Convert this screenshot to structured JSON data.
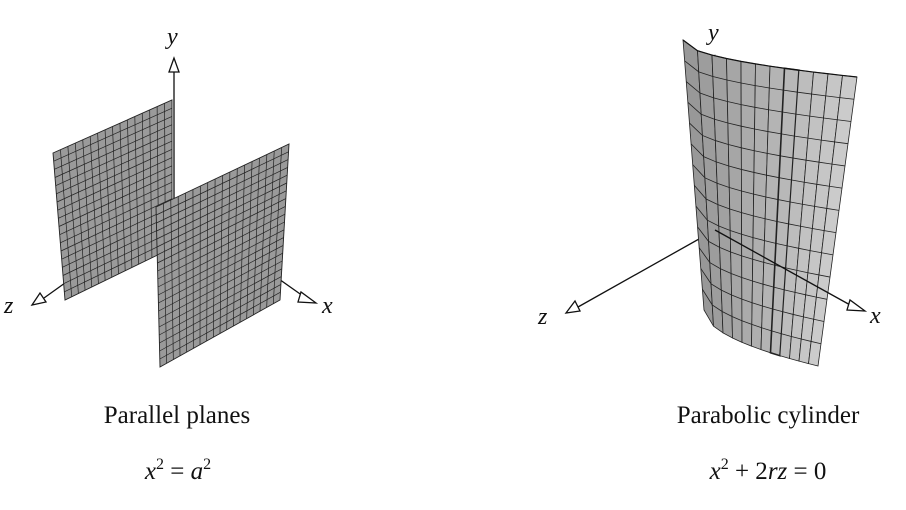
{
  "left_figure": {
    "axes": {
      "x": "x",
      "y": "y",
      "z": "z"
    },
    "caption": "Parallel planes",
    "equation": {
      "lhs_var": "x",
      "lhs_exp": "2",
      "op": "=",
      "rhs_var": "a",
      "rhs_exp": "2"
    }
  },
  "right_figure": {
    "axes": {
      "x": "x",
      "y": "y",
      "z": "z"
    },
    "caption": "Parabolic cylinder",
    "equation": {
      "var1": "x",
      "exp1": "2",
      "op1": "+ 2",
      "var2": "rz",
      "op2": "=",
      "rhs": "0"
    }
  }
}
